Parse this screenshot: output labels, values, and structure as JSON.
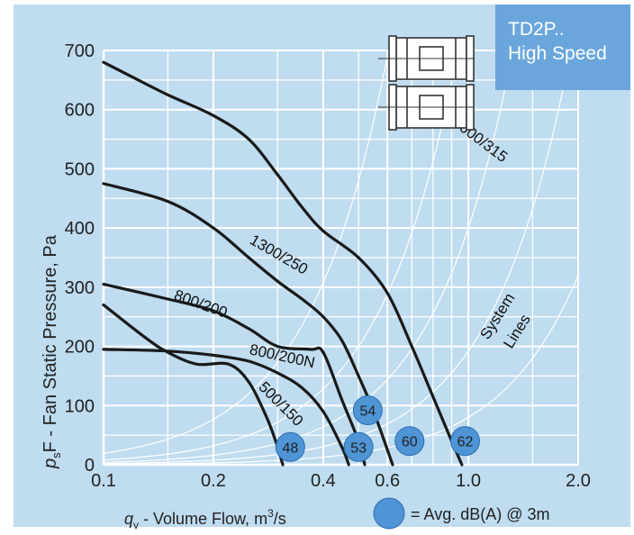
{
  "badge": {
    "line1": "TD2P..",
    "line2": "High Speed"
  },
  "colors": {
    "panel": "#bfdcf0",
    "badge": "#6aa6dc",
    "marker": "#4f94d4",
    "curve": "#1a1a1a",
    "grid": "#ffffff"
  },
  "icon": "twin-fan-unit-icon",
  "chart_data": {
    "type": "line",
    "xlabel_var": "q",
    "xlabel_sub": "v",
    "xlabel_text": " - Volume Flow, m",
    "xlabel_sup": "3",
    "xlabel_tail": "/s",
    "ylabel_var": "p",
    "ylabel_sub": "s",
    "ylabel_text": "F - Fan Static Pressure, Pa",
    "x_scale": "log",
    "xlim": [
      0.1,
      2.0
    ],
    "ylim": [
      0,
      700
    ],
    "x_ticks": [
      {
        "value": 0.1,
        "label": "0.1"
      },
      {
        "value": 0.2,
        "label": "0.2"
      },
      {
        "value": 0.4,
        "label": "0.4"
      },
      {
        "value": 0.6,
        "label": "0.6"
      },
      {
        "value": 1.0,
        "label": "1.0"
      },
      {
        "value": 2.0,
        "label": "2.0"
      }
    ],
    "x_grid": [
      0.1,
      0.15,
      0.2,
      0.3,
      0.4,
      0.5,
      0.6,
      0.7,
      0.8,
      0.9,
      1.0,
      1.5,
      2.0
    ],
    "y_ticks": [
      0,
      100,
      200,
      300,
      400,
      500,
      600,
      700
    ],
    "y_grid": [
      0,
      50,
      100,
      150,
      200,
      250,
      300,
      350,
      400,
      450,
      500,
      550,
      600,
      650,
      700
    ],
    "grid": true,
    "series": [
      {
        "name": "2000/315",
        "label_pos": [
          0.9,
          575
        ],
        "label_angle": 37,
        "points": [
          [
            0.1,
            680
          ],
          [
            0.12,
            655
          ],
          [
            0.15,
            625
          ],
          [
            0.2,
            590
          ],
          [
            0.25,
            550
          ],
          [
            0.3,
            490
          ],
          [
            0.35,
            435
          ],
          [
            0.4,
            395
          ],
          [
            0.5,
            350
          ],
          [
            0.6,
            290
          ],
          [
            0.7,
            200
          ],
          [
            0.8,
            115
          ],
          [
            0.9,
            40
          ],
          [
            0.96,
            0
          ]
        ]
      },
      {
        "name": "1300/250",
        "label_pos": [
          0.25,
          375
        ],
        "label_angle": 30,
        "points": [
          [
            0.1,
            475
          ],
          [
            0.15,
            445
          ],
          [
            0.2,
            400
          ],
          [
            0.25,
            350
          ],
          [
            0.3,
            310
          ],
          [
            0.35,
            280
          ],
          [
            0.4,
            250
          ],
          [
            0.45,
            210
          ],
          [
            0.5,
            150
          ],
          [
            0.55,
            90
          ],
          [
            0.62,
            0
          ]
        ]
      },
      {
        "name": "800/200",
        "label_pos": [
          0.155,
          280
        ],
        "label_angle": 20,
        "points": [
          [
            0.1,
            305
          ],
          [
            0.15,
            280
          ],
          [
            0.2,
            260
          ],
          [
            0.25,
            230
          ],
          [
            0.3,
            200
          ],
          [
            0.37,
            195
          ],
          [
            0.4,
            190
          ],
          [
            0.45,
            110
          ],
          [
            0.5,
            40
          ],
          [
            0.52,
            0
          ]
        ]
      },
      {
        "name": "800/200N",
        "label_pos": [
          0.25,
          187
        ],
        "label_angle": 12,
        "points": [
          [
            0.1,
            195
          ],
          [
            0.15,
            192
          ],
          [
            0.2,
            185
          ],
          [
            0.25,
            175
          ],
          [
            0.3,
            155
          ],
          [
            0.35,
            130
          ],
          [
            0.4,
            90
          ],
          [
            0.45,
            30
          ],
          [
            0.47,
            0
          ]
        ]
      },
      {
        "name": "500/150",
        "label_pos": [
          0.265,
          130
        ],
        "label_angle": 45,
        "points": [
          [
            0.1,
            270
          ],
          [
            0.13,
            215
          ],
          [
            0.15,
            190
          ],
          [
            0.18,
            170
          ],
          [
            0.22,
            170
          ],
          [
            0.25,
            140
          ],
          [
            0.28,
            80
          ],
          [
            0.3,
            30
          ],
          [
            0.31,
            0
          ]
        ]
      }
    ],
    "markers": [
      {
        "x": 0.325,
        "y": 30,
        "label": "48"
      },
      {
        "x": 0.5,
        "y": 30,
        "label": "53"
      },
      {
        "x": 0.53,
        "y": 92,
        "label": "54"
      },
      {
        "x": 0.69,
        "y": 40,
        "label": "60"
      },
      {
        "x": 0.98,
        "y": 40,
        "label": "62"
      }
    ],
    "system_lines": [
      0.5,
      1.2,
      2.5,
      5,
      12
    ],
    "system_label_1": "System",
    "system_label_2": "Lines",
    "legend_text": "= Avg. dB(A) @ 3m"
  }
}
